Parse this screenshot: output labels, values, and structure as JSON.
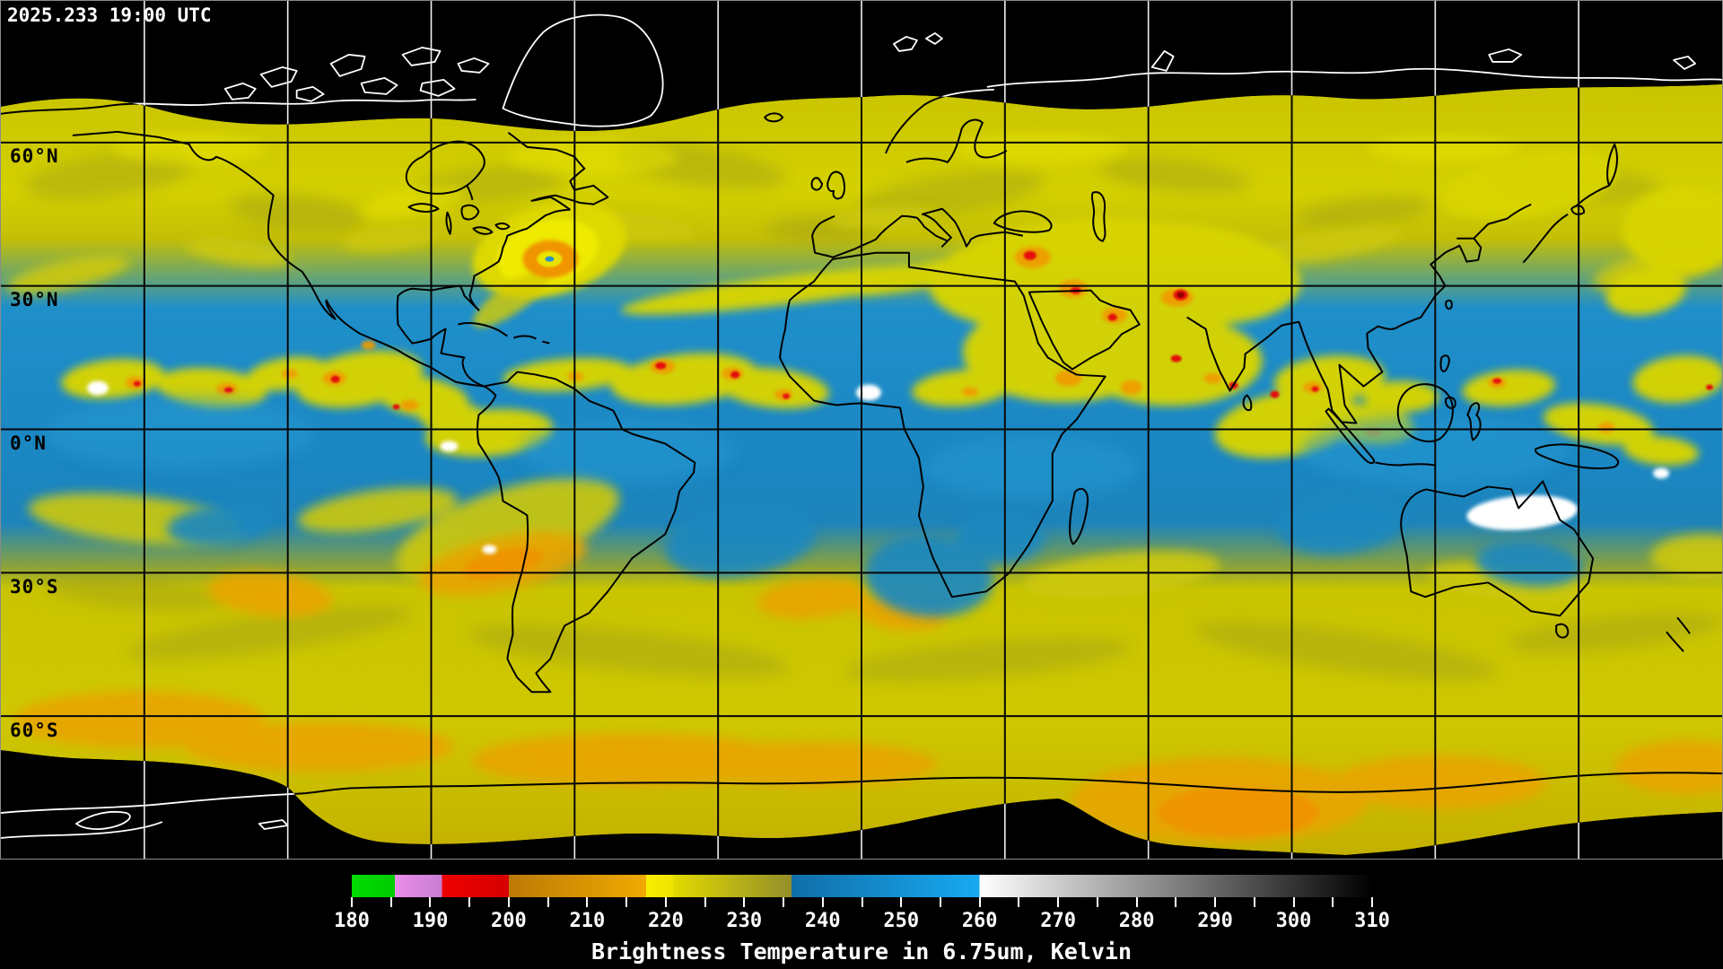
{
  "header": {
    "timestamp": "2025.233 19:00 UTC"
  },
  "map": {
    "latitude_labels": [
      {
        "text": "60°N",
        "lat": 60
      },
      {
        "text": "30°N",
        "lat": 30
      },
      {
        "text": "0°N",
        "lat": 0
      },
      {
        "text": "30°S",
        "lat": -30
      },
      {
        "text": "60°S",
        "lat": -60
      }
    ],
    "grid_interval_deg": 30
  },
  "colorbar": {
    "caption": "Brightness Temperature in 6.75um, Kelvin",
    "unit": "Kelvin",
    "min": 180,
    "max": 310,
    "minor_tick_step": 5,
    "label_step": 10,
    "tick_labels": [
      "180",
      "190",
      "200",
      "210",
      "220",
      "230",
      "240",
      "250",
      "260",
      "270",
      "280",
      "290",
      "300",
      "310"
    ],
    "segments": [
      {
        "from": 180,
        "to": 185.5,
        "colors": [
          "#00dc00",
          "#00cc00"
        ]
      },
      {
        "from": 185.5,
        "to": 191.5,
        "colors": [
          "#ea8cea",
          "#c87ed2"
        ]
      },
      {
        "from": 191.5,
        "to": 200,
        "colors": [
          "#ee0000",
          "#d60000"
        ]
      },
      {
        "from": 200,
        "to": 217.5,
        "colors": [
          "#bc7a06",
          "#f0aa00"
        ]
      },
      {
        "from": 217.5,
        "to": 221,
        "colors": [
          "#f8ee00",
          "#eee400"
        ]
      },
      {
        "from": 221,
        "to": 236,
        "colors": [
          "#e2da00",
          "#948e2a"
        ]
      },
      {
        "from": 236,
        "to": 260,
        "colors": [
          "#106ea8",
          "#18aaf2"
        ]
      },
      {
        "from": 260,
        "to": 310,
        "colors": [
          "#ffffff",
          "#000000"
        ]
      }
    ]
  },
  "palette": {
    "background": "#000000",
    "ocean_blue": "#1a86c2",
    "moist_yellow": "#d2cc00",
    "cold_orange": "#eda200",
    "colder_red": "#e01010",
    "grid_on_data": "#000000",
    "grid_on_space": "#f0f0f0",
    "coast_on_data": "#000000",
    "coast_on_space": "#ffffff",
    "label_text": "#ffffff"
  }
}
